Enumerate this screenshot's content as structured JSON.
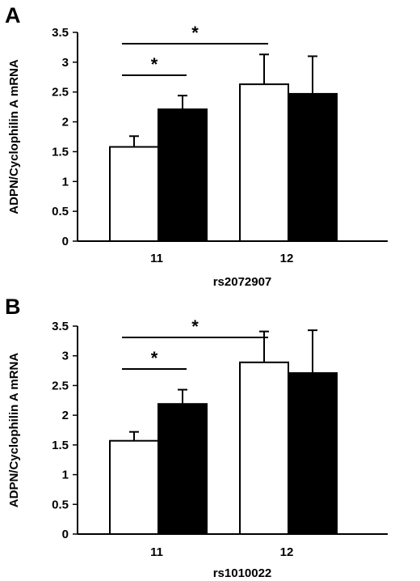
{
  "chart_data": [
    {
      "type": "bar",
      "panel_label": "A",
      "categories": [
        "11",
        "12"
      ],
      "series": [
        {
          "values": [
            1.58,
            2.63
          ],
          "errors": [
            0.18,
            0.5
          ],
          "color": "#ffffff"
        },
        {
          "values": [
            2.21,
            2.47
          ],
          "errors": [
            0.23,
            0.63
          ],
          "color": "#000000"
        }
      ],
      "xlabel": "rs2072907",
      "ylabel": "ADPN/Cyclophilin A mRNA",
      "ylim": [
        0,
        3.5
      ],
      "yticks": [
        "0",
        "0.5",
        "1",
        "1.5",
        "2",
        "2.5",
        "3",
        "3.5"
      ],
      "significance": [
        {
          "from": "11-white",
          "to": "11-black",
          "label": "*"
        },
        {
          "from": "11-white",
          "to": "12-white",
          "label": "*"
        }
      ],
      "grid": false
    },
    {
      "type": "bar",
      "panel_label": "B",
      "categories": [
        "11",
        "12"
      ],
      "series": [
        {
          "values": [
            1.57,
            2.89
          ],
          "errors": [
            0.15,
            0.52
          ],
          "color": "#ffffff"
        },
        {
          "values": [
            2.19,
            2.71
          ],
          "errors": [
            0.24,
            0.72
          ],
          "color": "#000000"
        }
      ],
      "xlabel": "rs1010022",
      "ylabel": "ADPN/Cyclophilin A mRNA",
      "ylim": [
        0,
        3.5
      ],
      "yticks": [
        "0",
        "0.5",
        "1",
        "1.5",
        "2",
        "2.5",
        "3",
        "3.5"
      ],
      "significance": [
        {
          "from": "11-white",
          "to": "11-black",
          "label": "*"
        },
        {
          "from": "11-white",
          "to": "12-white",
          "label": "*"
        }
      ],
      "grid": false
    }
  ]
}
